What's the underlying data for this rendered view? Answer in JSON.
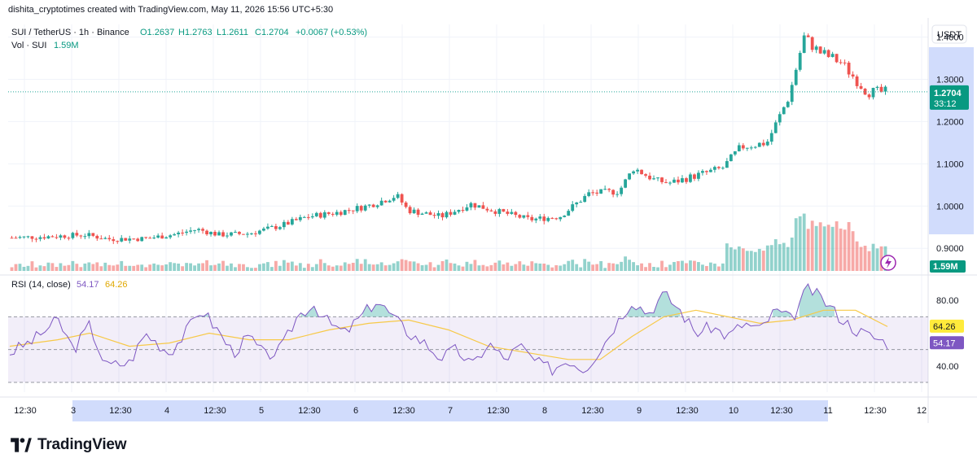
{
  "header": {
    "created_by": "dishita_cryptotimes created with TradingView.com, May 11, 2026 15:56 UTC+5:30"
  },
  "footer": {
    "brand": "TradingView"
  },
  "colors": {
    "up": "#26a69a",
    "down": "#ef5350",
    "rsi": "#7e57c2",
    "rsi_ma": "#f7c948",
    "axis_bg": "#d1dcfc"
  },
  "chart_data": [
    {
      "type": "candlestick",
      "symbol": "SUI / TetherUS · 1h · Binance",
      "ohlc": {
        "o": "O1.2637",
        "h": "H1.2763",
        "l": "L1.2611",
        "c": "C1.2704",
        "change": "+0.0067 (+0.53%)"
      },
      "volume_label": "Vol · SUI",
      "volume_value": "1.59M",
      "currency": "USDT",
      "last_price": "1.2704",
      "countdown": "33:12",
      "y_ticks": [
        "1.4000",
        "1.3000",
        "1.2000",
        "1.1000",
        "1.0000",
        "0.9000"
      ],
      "y_values": [
        1.4,
        1.3,
        1.2,
        1.1,
        1.0,
        0.9
      ],
      "ylim": [
        0.885,
        1.43
      ],
      "x_ticks": [
        "12:30",
        "3",
        "12:30",
        "4",
        "12:30",
        "5",
        "12:30",
        "6",
        "12:30",
        "7",
        "12:30",
        "8",
        "12:30",
        "9",
        "12:30",
        "10",
        "12:30",
        "11",
        "12:30",
        "12"
      ],
      "price_path": [
        [
          0,
          0.925
        ],
        [
          0.05,
          0.928
        ],
        [
          0.1,
          0.932
        ],
        [
          0.13,
          0.922
        ],
        [
          0.18,
          0.923
        ],
        [
          0.22,
          0.933
        ],
        [
          0.25,
          0.945
        ],
        [
          0.28,
          0.932
        ],
        [
          0.32,
          0.935
        ],
        [
          0.36,
          0.952
        ],
        [
          0.4,
          0.975
        ],
        [
          0.44,
          0.985
        ],
        [
          0.48,
          1.0
        ],
        [
          0.52,
          1.025
        ],
        [
          0.535,
          0.99
        ],
        [
          0.58,
          0.975
        ],
        [
          0.62,
          1.005
        ],
        [
          0.65,
          0.99
        ],
        [
          0.7,
          0.968
        ],
        [
          0.74,
          0.975
        ],
        [
          0.78,
          1.03
        ],
        [
          0.82,
          1.035
        ],
        [
          0.84,
          1.09
        ],
        [
          0.87,
          1.06
        ],
        [
          0.89,
          1.055
        ],
        [
          0.93,
          1.075
        ],
        [
          0.96,
          1.09
        ],
        [
          0.985,
          1.14
        ],
        [
          1.02,
          1.15
        ],
        [
          1.05,
          1.26
        ],
        [
          1.07,
          1.4
        ],
        [
          1.09,
          1.365
        ],
        [
          1.12,
          1.34
        ],
        [
          1.155,
          1.27
        ],
        [
          1.18,
          1.27
        ]
      ]
    },
    {
      "type": "line",
      "title": "RSI (14, close)",
      "rsi_value": "54.17",
      "ma_value": "64.26",
      "y_ticks": [
        "80.00",
        "40.00"
      ],
      "y_values": [
        80,
        40
      ],
      "bands": [
        30,
        50,
        70
      ],
      "ylim": [
        28,
        92
      ],
      "rsi_path": [
        [
          0,
          48
        ],
        [
          0.03,
          56
        ],
        [
          0.06,
          68
        ],
        [
          0.08,
          50
        ],
        [
          0.1,
          65
        ],
        [
          0.12,
          40
        ],
        [
          0.15,
          42
        ],
        [
          0.17,
          60
        ],
        [
          0.2,
          48
        ],
        [
          0.22,
          60
        ],
        [
          0.24,
          75
        ],
        [
          0.26,
          62
        ],
        [
          0.28,
          48
        ],
        [
          0.3,
          58
        ],
        [
          0.32,
          46
        ],
        [
          0.34,
          50
        ],
        [
          0.36,
          70
        ],
        [
          0.38,
          78
        ],
        [
          0.4,
          66
        ],
        [
          0.42,
          60
        ],
        [
          0.44,
          70
        ],
        [
          0.46,
          80
        ],
        [
          0.48,
          70
        ],
        [
          0.5,
          60
        ],
        [
          0.52,
          54
        ],
        [
          0.54,
          45
        ],
        [
          0.56,
          50
        ],
        [
          0.58,
          40
        ],
        [
          0.6,
          54
        ],
        [
          0.62,
          44
        ],
        [
          0.64,
          52
        ],
        [
          0.66,
          42
        ],
        [
          0.68,
          38
        ],
        [
          0.7,
          44
        ],
        [
          0.72,
          38
        ],
        [
          0.74,
          50
        ],
        [
          0.76,
          66
        ],
        [
          0.78,
          80
        ],
        [
          0.8,
          72
        ],
        [
          0.82,
          84
        ],
        [
          0.84,
          74
        ],
        [
          0.86,
          60
        ],
        [
          0.88,
          64
        ],
        [
          0.9,
          58
        ],
        [
          0.92,
          66
        ],
        [
          0.94,
          62
        ],
        [
          0.96,
          74
        ],
        [
          0.98,
          68
        ],
        [
          1.0,
          88
        ],
        [
          1.02,
          80
        ],
        [
          1.04,
          70
        ],
        [
          1.06,
          62
        ],
        [
          1.08,
          58
        ],
        [
          1.1,
          54
        ]
      ],
      "ma_path": [
        [
          0,
          52
        ],
        [
          0.06,
          56
        ],
        [
          0.1,
          60
        ],
        [
          0.15,
          52
        ],
        [
          0.2,
          54
        ],
        [
          0.25,
          60
        ],
        [
          0.3,
          56
        ],
        [
          0.35,
          56
        ],
        [
          0.4,
          62
        ],
        [
          0.45,
          66
        ],
        [
          0.5,
          68
        ],
        [
          0.55,
          62
        ],
        [
          0.6,
          52
        ],
        [
          0.65,
          48
        ],
        [
          0.7,
          44
        ],
        [
          0.74,
          44
        ],
        [
          0.78,
          58
        ],
        [
          0.82,
          70
        ],
        [
          0.86,
          74
        ],
        [
          0.9,
          70
        ],
        [
          0.94,
          66
        ],
        [
          0.98,
          68
        ],
        [
          1.02,
          74
        ],
        [
          1.06,
          74
        ],
        [
          1.1,
          64
        ]
      ]
    }
  ]
}
